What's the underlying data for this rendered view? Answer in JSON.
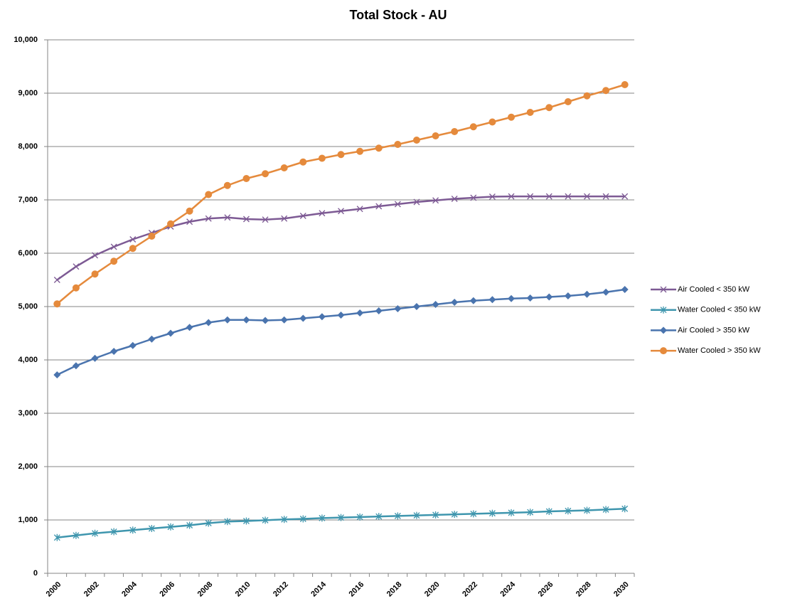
{
  "chart_data": {
    "type": "line",
    "title": "Total Stock - AU",
    "categories": [
      "2000",
      null,
      "2002",
      null,
      "2004",
      null,
      "2006",
      null,
      "2008",
      null,
      "2010",
      null,
      "2012",
      null,
      "2014",
      null,
      "2016",
      null,
      "2018",
      null,
      "2020",
      null,
      "2022",
      null,
      "2024",
      null,
      "2026",
      null,
      "2028",
      null,
      "2030"
    ],
    "series": [
      {
        "name": "Air Cooled < 350 kW",
        "color": "#7d5a94",
        "marker": "x",
        "values": [
          5500,
          5750,
          5960,
          6120,
          6260,
          6380,
          6500,
          6590,
          6650,
          6670,
          6640,
          6630,
          6650,
          6700,
          6750,
          6790,
          6830,
          6880,
          6920,
          6960,
          6990,
          7020,
          7040,
          7060,
          7065,
          7065,
          7065,
          7065,
          7065,
          7065,
          7065
        ]
      },
      {
        "name": "Water Cooled < 350 kW",
        "color": "#3f96ae",
        "marker": "star",
        "values": [
          670,
          710,
          750,
          780,
          810,
          840,
          870,
          900,
          940,
          970,
          980,
          995,
          1010,
          1020,
          1035,
          1045,
          1055,
          1065,
          1075,
          1085,
          1095,
          1105,
          1115,
          1125,
          1135,
          1145,
          1160,
          1170,
          1180,
          1195,
          1210
        ]
      },
      {
        "name": "Air Cooled > 350 kW",
        "color": "#4a74ae",
        "marker": "diamond",
        "values": [
          3720,
          3890,
          4030,
          4160,
          4270,
          4390,
          4500,
          4610,
          4700,
          4750,
          4750,
          4740,
          4750,
          4780,
          4810,
          4840,
          4880,
          4920,
          4960,
          5000,
          5040,
          5080,
          5110,
          5130,
          5150,
          5160,
          5180,
          5200,
          5230,
          5270,
          5320
        ]
      },
      {
        "name": "Water Cooled > 350 kW",
        "color": "#e58a3c",
        "marker": "circle",
        "values": [
          5050,
          5350,
          5610,
          5850,
          6090,
          6320,
          6550,
          6790,
          7100,
          7270,
          7400,
          7490,
          7600,
          7710,
          7780,
          7850,
          7910,
          7970,
          8040,
          8120,
          8200,
          8280,
          8370,
          8460,
          8550,
          8640,
          8730,
          8840,
          8950,
          9050,
          9160
        ]
      }
    ],
    "ylim": [
      0,
      10000
    ],
    "yticks": [
      0,
      {
        "value": 1000,
        "label": "1,000"
      },
      {
        "value": 2000,
        "label": "2,000"
      },
      {
        "value": 3000,
        "label": "3,000"
      },
      {
        "value": 4000,
        "label": "4,000"
      },
      {
        "value": 5000,
        "label": "5,000"
      },
      {
        "value": 6000,
        "label": "6,000"
      },
      {
        "value": 7000,
        "label": "7,000"
      },
      {
        "value": 8000,
        "label": "8,000"
      },
      {
        "value": 9000,
        "label": "9,000"
      },
      {
        "value": 10000,
        "label": "10,000"
      }
    ],
    "grid": true,
    "legend": "right"
  }
}
